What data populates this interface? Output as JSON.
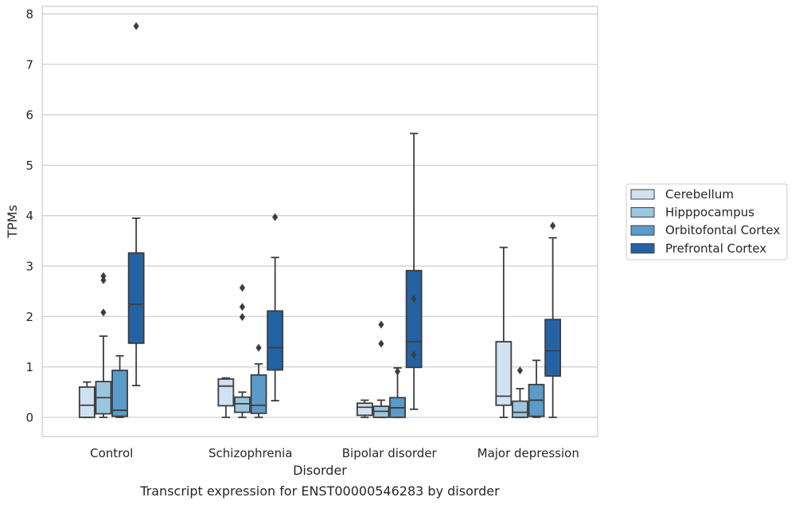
{
  "chart_data": {
    "type": "box",
    "caption": "Transcript expression for ENST00000546283 by disorder",
    "xlabel": "Disorder",
    "ylabel": "TPMs",
    "ylim": [
      -0.38,
      8.15
    ],
    "yticks": [
      "0",
      "1",
      "2",
      "3",
      "4",
      "5",
      "6",
      "7",
      "8"
    ],
    "grid": "horizontal",
    "legend_position": "right",
    "categories": [
      "Control",
      "Schizophrenia",
      "Bipolar disorder",
      "Major depression"
    ],
    "series": [
      {
        "name": "Cerebellum",
        "color": "#d0e1f2",
        "boxes": [
          {
            "whisker_low": 0.0,
            "q1": 0.0,
            "median": 0.24,
            "q3": 0.6,
            "whisker_high": 0.7,
            "outliers": []
          },
          {
            "whisker_low": 0.0,
            "q1": 0.23,
            "median": 0.62,
            "q3": 0.76,
            "whisker_high": 0.78,
            "outliers": []
          },
          {
            "whisker_low": 0.0,
            "q1": 0.04,
            "median": 0.2,
            "q3": 0.28,
            "whisker_high": 0.34,
            "outliers": []
          },
          {
            "whisker_low": 0.0,
            "q1": 0.24,
            "median": 0.42,
            "q3": 1.5,
            "whisker_high": 3.37,
            "outliers": []
          }
        ]
      },
      {
        "name": "Hipppocampus",
        "color": "#9ac6e0",
        "boxes": [
          {
            "whisker_low": 0.0,
            "q1": 0.07,
            "median": 0.39,
            "q3": 0.71,
            "whisker_high": 1.61,
            "outliers": [
              2.08,
              2.72,
              2.8
            ]
          },
          {
            "whisker_low": 0.0,
            "q1": 0.1,
            "median": 0.27,
            "q3": 0.4,
            "whisker_high": 0.5,
            "outliers": [
              1.99,
              2.19,
              2.57
            ]
          },
          {
            "whisker_low": 0.0,
            "q1": 0.0,
            "median": 0.12,
            "q3": 0.22,
            "whisker_high": 0.34,
            "outliers": [
              1.46,
              1.84
            ]
          },
          {
            "whisker_low": 0.0,
            "q1": 0.0,
            "median": 0.1,
            "q3": 0.32,
            "whisker_high": 0.57,
            "outliers": [
              0.93
            ]
          }
        ]
      },
      {
        "name": "Orbitofontal Cortex",
        "color": "#5a9bc9",
        "boxes": [
          {
            "whisker_low": 0.0,
            "q1": 0.02,
            "median": 0.14,
            "q3": 0.93,
            "whisker_high": 1.22,
            "outliers": []
          },
          {
            "whisker_low": 0.0,
            "q1": 0.08,
            "median": 0.24,
            "q3": 0.84,
            "whisker_high": 1.06,
            "outliers": [
              1.38
            ]
          },
          {
            "whisker_low": 0.0,
            "q1": 0.0,
            "median": 0.19,
            "q3": 0.39,
            "whisker_high": 0.98,
            "outliers": [
              0.91
            ]
          },
          {
            "whisker_low": 0.0,
            "q1": 0.02,
            "median": 0.34,
            "q3": 0.65,
            "whisker_high": 1.13,
            "outliers": []
          }
        ]
      },
      {
        "name": "Prefrontal Cortex",
        "color": "#2363a5",
        "boxes": [
          {
            "whisker_low": 0.63,
            "q1": 1.47,
            "median": 2.24,
            "q3": 3.26,
            "whisker_high": 3.95,
            "outliers": [
              7.76
            ]
          },
          {
            "whisker_low": 0.33,
            "q1": 0.94,
            "median": 1.38,
            "q3": 2.11,
            "whisker_high": 3.17,
            "outliers": [
              3.97
            ]
          },
          {
            "whisker_low": 0.16,
            "q1": 0.99,
            "median": 1.5,
            "q3": 2.91,
            "whisker_high": 5.63,
            "outliers": [
              1.24,
              2.35
            ]
          },
          {
            "whisker_low": 0.0,
            "q1": 0.82,
            "median": 1.32,
            "q3": 1.94,
            "whisker_high": 3.56,
            "outliers": [
              3.8
            ]
          }
        ]
      }
    ]
  }
}
